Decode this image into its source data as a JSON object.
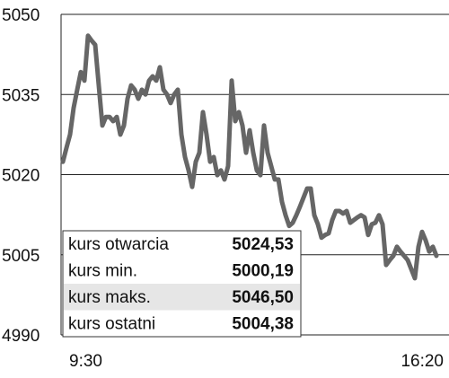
{
  "chart_data": {
    "type": "line",
    "categories": [
      "9:30",
      null,
      null,
      null,
      null,
      null,
      null,
      null,
      null,
      null,
      null,
      null,
      null,
      null,
      null,
      null,
      null,
      null,
      null,
      null,
      null,
      null,
      null,
      null,
      null,
      null,
      null,
      null,
      null,
      null,
      null,
      null,
      null,
      null,
      null,
      null,
      null,
      null,
      null,
      null,
      null,
      null,
      null,
      null,
      null,
      null,
      null,
      null,
      null,
      null,
      null,
      null,
      null,
      null,
      null,
      null,
      null,
      null,
      null,
      null,
      null,
      null,
      null,
      null,
      null,
      null,
      null,
      null,
      null,
      null,
      null,
      null,
      null,
      null,
      null,
      null,
      null,
      null,
      null,
      null,
      null,
      null,
      null,
      null,
      null,
      null,
      null,
      null,
      null,
      null,
      null,
      null,
      null,
      null,
      null,
      null,
      null,
      null,
      null,
      null,
      null,
      null,
      null,
      null,
      "16:20"
    ],
    "values": [
      5022.4,
      5025.0,
      5027.5,
      5032.5,
      5035.9,
      5039.2,
      5037.6,
      5046.0,
      5045.1,
      5044.3,
      5036.7,
      5029.2,
      5030.8,
      5030.8,
      5030.0,
      5030.8,
      5027.5,
      5029.2,
      5034.2,
      5036.7,
      5035.9,
      5034.2,
      5035.9,
      5035.0,
      5037.6,
      5038.4,
      5037.6,
      5040.1,
      5035.9,
      5035.0,
      5033.4,
      5035.0,
      5035.9,
      5027.5,
      5023.3,
      5020.8,
      5017.7,
      5022.4,
      5024.1,
      5031.7,
      5027.5,
      5022.4,
      5023.3,
      5019.9,
      5020.8,
      5019.1,
      5021.6,
      5037.6,
      5030.0,
      5031.7,
      5029.2,
      5024.1,
      5028.3,
      5024.1,
      5020.8,
      5019.9,
      5029.2,
      5024.1,
      5021.6,
      5019.1,
      5019.1,
      5014.9,
      5012.4,
      5010.4,
      5011.0,
      5012.4,
      5014.0,
      5015.7,
      5017.4,
      5017.4,
      5012.4,
      5010.7,
      5008.2,
      5008.7,
      5009.0,
      5011.5,
      5013.2,
      5013.2,
      5012.7,
      5013.2,
      5011.0,
      5011.5,
      5012.0,
      5012.4,
      5012.0,
      5008.7,
      5010.7,
      5011.0,
      5012.4,
      5010.7,
      5003.1,
      5004.0,
      5004.8,
      5006.5,
      5005.6,
      5004.8,
      5004.0,
      5002.3,
      5000.6,
      5006.5,
      5009.3,
      5007.7,
      5005.6,
      5006.5,
      5004.8
    ],
    "color": "#666666",
    "ylim": [
      4990,
      5050
    ],
    "yticks": [
      4990,
      5005,
      5020,
      5035,
      5050
    ],
    "grid": true,
    "table": {
      "rows": [
        [
          "kurs otwarcia",
          "5024,53"
        ],
        [
          "kurs min.",
          "5000,19"
        ],
        [
          "kurs maks.",
          "5046,50"
        ],
        [
          "kurs ostatni",
          "5004,38"
        ]
      ]
    }
  }
}
